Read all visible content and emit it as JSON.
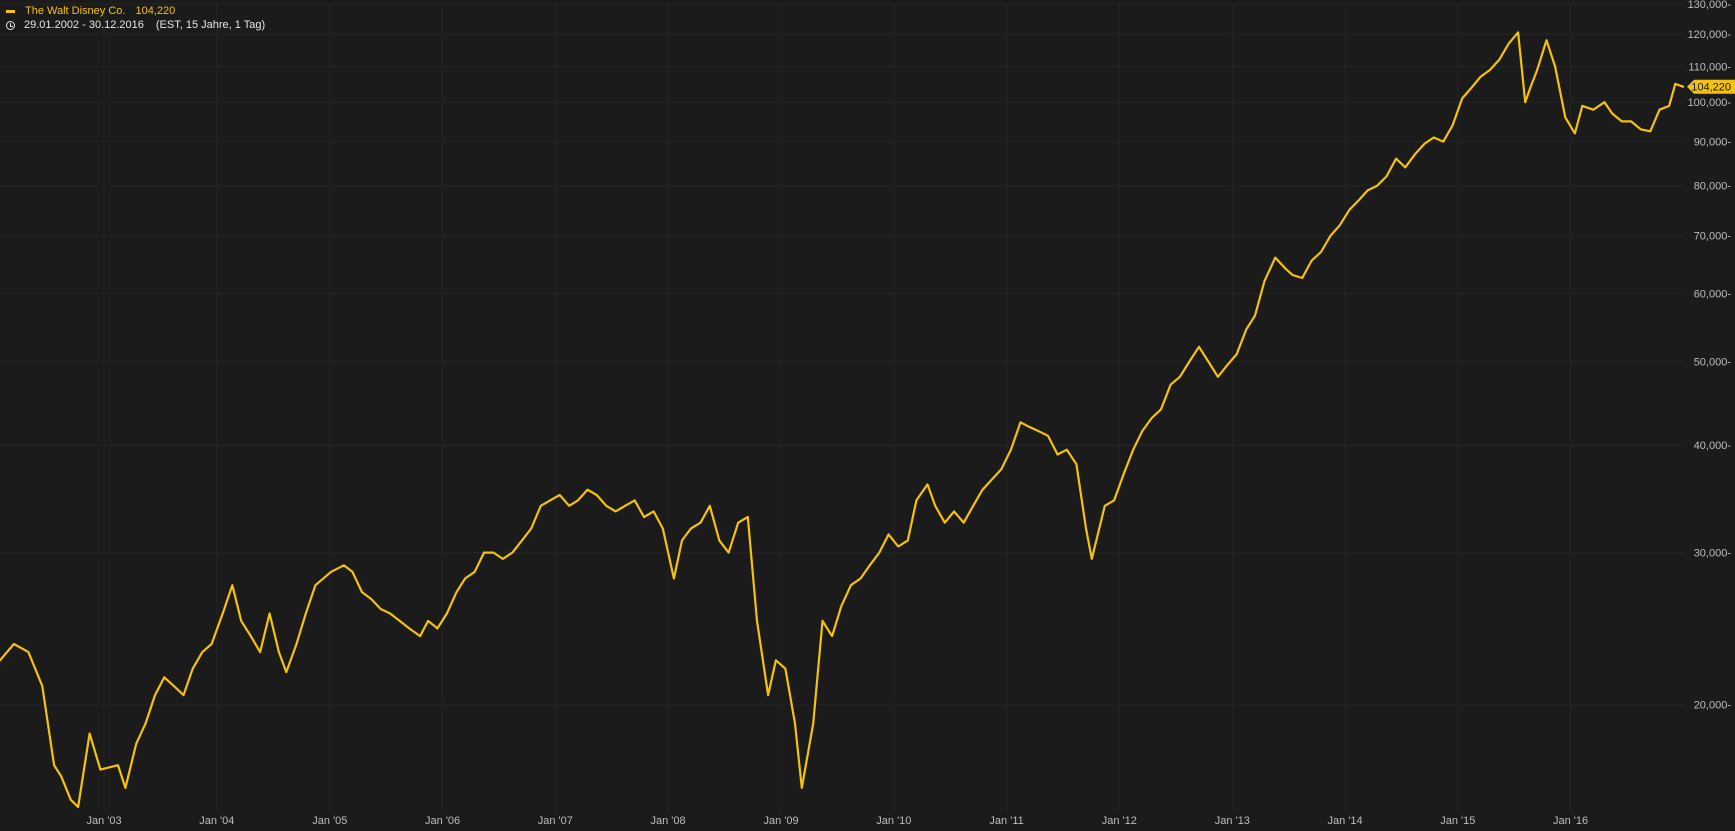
{
  "header": {
    "series_name": "The Walt Disney Co.",
    "series_value": "104,220",
    "date_range": "29.01.2002 - 30.12.2016",
    "range_note": "(EST, 15 Jahre, 1 Tag)"
  },
  "colors": {
    "background": "#1b1b1b",
    "series": "#f4c20d",
    "axis_text": "#bdbdbd",
    "grid": "#242424"
  },
  "icons": {
    "legend_swatch": "dash",
    "clock": "clock-icon"
  },
  "chart_data": {
    "type": "line",
    "title": "",
    "scale": "log",
    "grid": true,
    "ylim": [
      15,
      130
    ],
    "xlim": [
      "2002-01-29",
      "2016-12-30"
    ],
    "y_ticks": [
      20,
      30,
      40,
      50,
      60,
      70,
      80,
      90,
      100,
      110,
      120,
      130
    ],
    "y_tick_labels": [
      "20,000-",
      "30,000-",
      "40,000-",
      "50,000-",
      "60,000-",
      "70,000-",
      "80,000-",
      "90,000-",
      "100,000-",
      "110,000-",
      "120,000-",
      "130,000-"
    ],
    "x_ticks": [
      "2003-01-01",
      "2004-01-01",
      "2005-01-01",
      "2006-01-01",
      "2007-01-01",
      "2008-01-01",
      "2009-01-01",
      "2010-01-01",
      "2011-01-01",
      "2012-01-01",
      "2013-01-01",
      "2014-01-01",
      "2015-01-01",
      "2016-01-01"
    ],
    "x_tick_labels": [
      "Jan '03",
      "Jan '04",
      "Jan '05",
      "Jan '06",
      "Jan '07",
      "Jan '08",
      "Jan '09",
      "Jan '10",
      "Jan '11",
      "Jan '12",
      "Jan '13",
      "Jan '14",
      "Jan '15",
      "Jan '16"
    ],
    "last_value_label": "104,220",
    "series": [
      {
        "name": "The Walt Disney Co.",
        "x": [
          "2002-01-29",
          "2002-03-15",
          "2002-05-01",
          "2002-06-15",
          "2002-07-23",
          "2002-08-15",
          "2002-09-15",
          "2002-10-09",
          "2002-11-15",
          "2002-12-20",
          "2003-02-15",
          "2003-03-11",
          "2003-04-15",
          "2003-05-15",
          "2003-06-15",
          "2003-07-15",
          "2003-08-15",
          "2003-09-15",
          "2003-10-15",
          "2003-11-15",
          "2003-12-15",
          "2004-01-20",
          "2004-02-20",
          "2004-03-20",
          "2004-04-20",
          "2004-05-20",
          "2004-06-20",
          "2004-07-20",
          "2004-08-13",
          "2004-09-15",
          "2004-10-15",
          "2004-11-15",
          "2005-01-05",
          "2005-02-15",
          "2005-03-15",
          "2005-04-15",
          "2005-05-15",
          "2005-06-15",
          "2005-07-15",
          "2005-08-15",
          "2005-09-15",
          "2005-10-20",
          "2005-11-15",
          "2005-12-15",
          "2006-01-15",
          "2006-02-15",
          "2006-03-15",
          "2006-04-15",
          "2006-05-15",
          "2006-06-15",
          "2006-07-15",
          "2006-08-15",
          "2006-09-15",
          "2006-10-15",
          "2006-11-15",
          "2006-12-15",
          "2007-01-15",
          "2007-02-15",
          "2007-03-15",
          "2007-04-15",
          "2007-05-15",
          "2007-06-15",
          "2007-07-15",
          "2007-08-15",
          "2007-09-15",
          "2007-10-15",
          "2007-11-15",
          "2007-12-15",
          "2008-01-20",
          "2008-02-15",
          "2008-03-15",
          "2008-04-15",
          "2008-05-15",
          "2008-06-15",
          "2008-07-15",
          "2008-08-15",
          "2008-09-15",
          "2008-10-15",
          "2008-11-20",
          "2008-12-15",
          "2009-01-15",
          "2009-02-15",
          "2009-03-09",
          "2009-04-15",
          "2009-05-15",
          "2009-06-15",
          "2009-07-15",
          "2009-08-15",
          "2009-09-15",
          "2009-10-15",
          "2009-11-15",
          "2009-12-15",
          "2010-01-15",
          "2010-02-15",
          "2010-03-15",
          "2010-04-20",
          "2010-05-15",
          "2010-06-15",
          "2010-07-15",
          "2010-08-15",
          "2010-09-15",
          "2010-10-15",
          "2010-11-15",
          "2010-12-15",
          "2011-01-15",
          "2011-02-15",
          "2011-03-15",
          "2011-04-15",
          "2011-05-15",
          "2011-06-15",
          "2011-07-15",
          "2011-08-15",
          "2011-09-15",
          "2011-10-04",
          "2011-11-15",
          "2011-12-15",
          "2012-01-15",
          "2012-02-15",
          "2012-03-15",
          "2012-04-15",
          "2012-05-15",
          "2012-06-15",
          "2012-07-15",
          "2012-08-15",
          "2012-09-15",
          "2012-10-15",
          "2012-11-15",
          "2012-12-15",
          "2013-01-15",
          "2013-02-15",
          "2013-03-15",
          "2013-04-15",
          "2013-05-20",
          "2013-06-24",
          "2013-07-15",
          "2013-08-15",
          "2013-09-15",
          "2013-10-15",
          "2013-11-15",
          "2013-12-15",
          "2014-01-15",
          "2014-02-15",
          "2014-03-15",
          "2014-04-15",
          "2014-05-15",
          "2014-06-15",
          "2014-07-15",
          "2014-08-15",
          "2014-09-15",
          "2014-10-15",
          "2014-11-15",
          "2014-12-15",
          "2015-01-15",
          "2015-02-15",
          "2015-03-15",
          "2015-04-15",
          "2015-05-15",
          "2015-06-15",
          "2015-07-15",
          "2015-08-07",
          "2015-08-24",
          "2015-09-15",
          "2015-10-15",
          "2015-11-12",
          "2015-12-15",
          "2016-01-15",
          "2016-02-08",
          "2016-03-15",
          "2016-04-20",
          "2016-05-15",
          "2016-06-15",
          "2016-07-15",
          "2016-08-15",
          "2016-09-15",
          "2016-10-15",
          "2016-11-15",
          "2016-12-05",
          "2016-12-30"
        ],
        "values": [
          22.5,
          23.5,
          23.0,
          21.0,
          17.0,
          16.5,
          15.5,
          15.2,
          18.5,
          16.8,
          17.0,
          16.0,
          18.0,
          19.0,
          20.5,
          21.5,
          21.0,
          20.5,
          22.0,
          23.0,
          23.5,
          25.5,
          27.5,
          25.0,
          24.0,
          23.0,
          25.5,
          23.0,
          21.8,
          23.5,
          25.5,
          27.5,
          28.5,
          29.0,
          28.5,
          27.0,
          26.5,
          25.8,
          25.5,
          25.0,
          24.5,
          24.0,
          25.0,
          24.5,
          25.5,
          27.0,
          28.0,
          28.5,
          30.0,
          30.0,
          29.5,
          30.0,
          31.0,
          32.0,
          34.0,
          34.5,
          35.0,
          34.0,
          34.5,
          35.5,
          35.0,
          34.0,
          33.5,
          34.0,
          34.5,
          33.0,
          33.5,
          32.0,
          28.0,
          31.0,
          32.0,
          32.5,
          34.0,
          31.0,
          30.0,
          32.5,
          33.0,
          25.0,
          20.5,
          22.5,
          22.0,
          19.0,
          16.0,
          19.0,
          25.0,
          24.0,
          26.0,
          27.5,
          28.0,
          29.0,
          30.0,
          31.5,
          30.5,
          31.0,
          34.5,
          36.0,
          34.0,
          32.5,
          33.5,
          32.5,
          34.0,
          35.5,
          36.5,
          37.5,
          39.5,
          42.5,
          42.0,
          41.5,
          41.0,
          39.0,
          39.5,
          38.0,
          32.0,
          29.5,
          34.0,
          34.5,
          37.0,
          39.5,
          41.5,
          43.0,
          44.0,
          47.0,
          48.0,
          50.0,
          52.0,
          50.0,
          48.0,
          49.5,
          51.0,
          54.5,
          56.5,
          62.0,
          66.0,
          64.0,
          63.0,
          62.5,
          65.5,
          67.0,
          70.0,
          72.0,
          75.0,
          77.0,
          79.0,
          80.0,
          82.0,
          86.0,
          84.0,
          87.0,
          89.5,
          91.0,
          90.0,
          94.0,
          101.0,
          104.0,
          107.0,
          109.0,
          112.0,
          117.0,
          120.5,
          100.0,
          104.0,
          109.0,
          118.0,
          110.0,
          96.0,
          92.0,
          99.0,
          98.0,
          100.0,
          97.0,
          95.0,
          95.0,
          93.0,
          92.5,
          98.0,
          99.0,
          105.0,
          104.22
        ]
      }
    ]
  }
}
